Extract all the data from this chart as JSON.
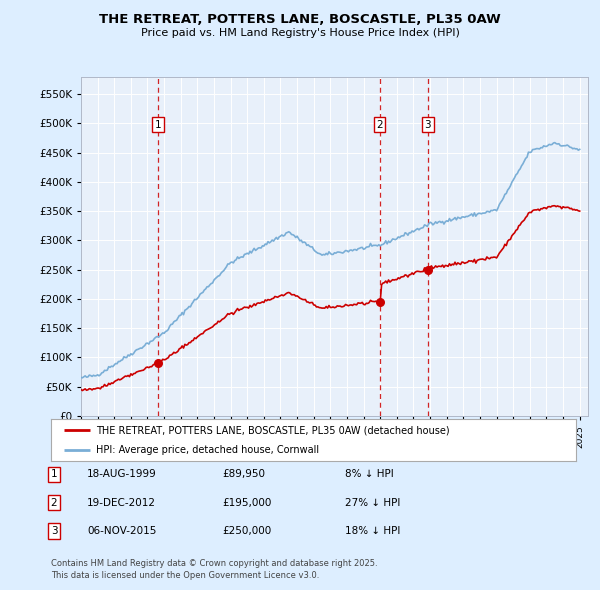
{
  "title1": "THE RETREAT, POTTERS LANE, BOSCASTLE, PL35 0AW",
  "title2": "Price paid vs. HM Land Registry's House Price Index (HPI)",
  "legend_red": "THE RETREAT, POTTERS LANE, BOSCASTLE, PL35 0AW (detached house)",
  "legend_blue": "HPI: Average price, detached house, Cornwall",
  "footnote": "Contains HM Land Registry data © Crown copyright and database right 2025.\nThis data is licensed under the Open Government Licence v3.0.",
  "transactions": [
    {
      "num": 1,
      "date": "18-AUG-1999",
      "price": 89950,
      "pct": "8% ↓ HPI",
      "year": 1999.63
    },
    {
      "num": 2,
      "date": "19-DEC-2012",
      "price": 195000,
      "pct": "27% ↓ HPI",
      "year": 2012.96
    },
    {
      "num": 3,
      "date": "06-NOV-2015",
      "price": 250000,
      "pct": "18% ↓ HPI",
      "year": 2015.85
    }
  ],
  "red_color": "#cc0000",
  "blue_color": "#7aaed6",
  "bg_color": "#ddeeff",
  "plot_bg": "#e8f0fa",
  "ylim": [
    0,
    580000
  ],
  "yticks": [
    0,
    50000,
    100000,
    150000,
    200000,
    250000,
    300000,
    350000,
    400000,
    450000,
    500000,
    550000
  ],
  "xlim_start": 1995,
  "xlim_end": 2025.5
}
